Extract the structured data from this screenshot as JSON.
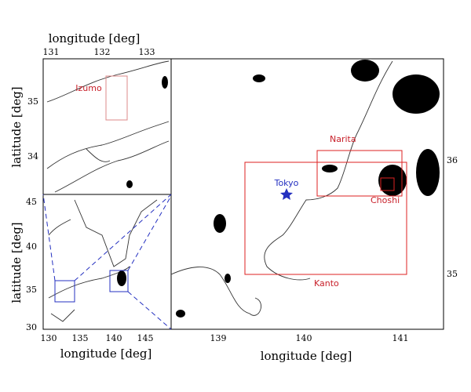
{
  "left_top": {
    "x_label": "longitude [deg]",
    "x_ticks": [
      131,
      132,
      133
    ],
    "y_label": "latitude [deg]",
    "y_ticks": [
      35,
      34
    ],
    "site": "Izumo"
  },
  "left_bottom": {
    "x_label": "longitude [deg]",
    "x_ticks": [
      130,
      135,
      140,
      145
    ],
    "y_label": "latitude [deg]",
    "y_ticks": [
      45,
      40,
      35,
      30
    ]
  },
  "right": {
    "x_label": "longitude [deg]",
    "x_ticks": [
      139,
      140,
      141
    ],
    "y_ticks": [
      36,
      35
    ],
    "sites": [
      "Narita",
      "Tokyo",
      "Choshi",
      "Kanto"
    ]
  }
}
